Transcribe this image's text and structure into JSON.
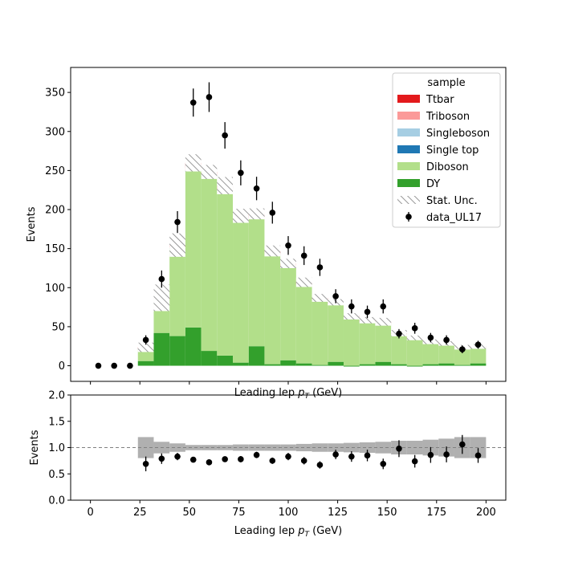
{
  "chart_data": [
    {
      "type": "bar",
      "panel": "main",
      "xlabel_base": "Leading lep ",
      "xlabel_sym": "p",
      "xlabel_sub": "T",
      "xlabel_unit": " (GeV)",
      "ylabel": "Events",
      "xlim": [
        -10,
        210
      ],
      "ylim": [
        -20,
        382
      ],
      "yticks": [
        0,
        50,
        100,
        150,
        200,
        250,
        300,
        350
      ],
      "legend": {
        "title": "sample",
        "placement": "top-right",
        "entries": [
          "Ttbar",
          "Triboson",
          "Singleboson",
          "Single top",
          "Diboson",
          "DY",
          "Stat. Unc.",
          "data_UL17"
        ]
      },
      "bin_edges": [
        0,
        8,
        16,
        24,
        32,
        40,
        48,
        56,
        64,
        72,
        80,
        88,
        96,
        104,
        112,
        120,
        128,
        136,
        144,
        152,
        160,
        168,
        176,
        184,
        192,
        200
      ],
      "series": [
        {
          "name": "DY",
          "color": "#33a02c",
          "values": [
            0,
            0,
            0,
            6,
            42,
            38,
            49,
            19,
            13,
            4,
            25,
            2,
            7,
            3,
            1,
            5,
            -1,
            2,
            5,
            2,
            -1,
            2,
            3,
            1,
            3
          ]
        },
        {
          "name": "Diboson",
          "color": "#b2df8a",
          "values": [
            0,
            0,
            0,
            15,
            42,
            112,
            200,
            224,
            211,
            183,
            163,
            140,
            118,
            100,
            83,
            74,
            62,
            54,
            49,
            38,
            35,
            27,
            24,
            21,
            20
          ]
        },
        {
          "name": "Single top",
          "color": "#1f78b4",
          "values": [
            0,
            0,
            0,
            0.3,
            0.4,
            0.5,
            0.5,
            0.4,
            0.4,
            0.3,
            0.3,
            0.3,
            0.3,
            0.2,
            0.2,
            0.2,
            0.2,
            0.2,
            0.2,
            0.1,
            0.1,
            0.1,
            0.1,
            0.1,
            0.1
          ]
        },
        {
          "name": "Singleboson",
          "color": "#a6cee3",
          "values": [
            0,
            0,
            0,
            0.3,
            0.3,
            0.3,
            0.3,
            0.3,
            0.3,
            0.2,
            0.2,
            0.2,
            0.2,
            0.2,
            0.2,
            0.1,
            0.1,
            0.1,
            0.1,
            0.1,
            0.1,
            0.1,
            0.1,
            0.1,
            0.1
          ]
        },
        {
          "name": "Triboson",
          "color": "#fb9a99",
          "values": [
            0,
            0,
            0,
            0.5,
            0.8,
            1.2,
            4,
            2,
            2,
            2,
            2,
            1.5,
            3,
            1.5,
            1,
            0.5,
            0.5,
            0.5,
            0.5,
            0.5,
            0.5,
            0.5,
            0.5,
            0.5,
            0.5
          ]
        },
        {
          "name": "Ttbar",
          "color": "#e31a1c",
          "values": [
            0,
            0,
            0,
            1.5,
            1.5,
            2.5,
            6,
            2.5,
            4,
            2.5,
            4,
            3,
            2.5,
            2,
            1.5,
            1.5,
            1.5,
            1.5,
            1.5,
            1,
            1,
            1,
            1,
            1,
            1
          ]
        }
      ],
      "stat_unc": [
        0,
        0,
        0,
        6,
        17,
        15,
        11,
        9,
        11,
        9,
        7,
        7,
        6,
        6,
        5,
        4,
        4,
        4,
        5,
        4,
        3,
        3,
        3,
        3,
        3
      ],
      "data": {
        "name": "data_UL17",
        "x": [
          4,
          12,
          20,
          28,
          36,
          44,
          52,
          60,
          68,
          76,
          84,
          92,
          100,
          108,
          116,
          124,
          132,
          140,
          148,
          156,
          164,
          172,
          180,
          188,
          196
        ],
        "y": [
          0,
          0,
          0,
          33,
          111,
          184,
          337,
          344,
          295,
          247,
          227,
          196,
          154,
          141,
          126,
          89,
          76,
          69,
          76,
          41,
          48,
          36,
          33,
          21,
          27
        ],
        "err": [
          0,
          0,
          0,
          6,
          11,
          14,
          18,
          19,
          17,
          16,
          15,
          14,
          12,
          12,
          11,
          9,
          9,
          8,
          9,
          6,
          7,
          6,
          6,
          5,
          5
        ]
      }
    },
    {
      "type": "scatter",
      "panel": "ratio",
      "xlabel_base": "Leading lep ",
      "xlabel_sym": "p",
      "xlabel_sub": "T",
      "xlabel_unit": " (GeV)",
      "ylabel": "Events",
      "xlim": [
        -10,
        210
      ],
      "ylim": [
        0,
        2
      ],
      "xticks": [
        0,
        25,
        50,
        75,
        100,
        125,
        150,
        175,
        200
      ],
      "yticks": [
        0.0,
        0.5,
        1.0,
        1.5,
        2.0
      ],
      "ytick_labels": [
        "0.0",
        "0.5",
        "1.0",
        "1.5",
        "2.0"
      ],
      "reference_line": 1.0,
      "unc_band": [
        0,
        0,
        0,
        0.2,
        0.11,
        0.08,
        0.05,
        0.05,
        0.05,
        0.06,
        0.06,
        0.06,
        0.06,
        0.07,
        0.08,
        0.08,
        0.09,
        0.1,
        0.11,
        0.13,
        0.13,
        0.15,
        0.17,
        0.2,
        0.2
      ],
      "x": [
        28,
        36,
        44,
        52,
        60,
        68,
        76,
        84,
        92,
        100,
        108,
        116,
        124,
        132,
        140,
        148,
        156,
        164,
        172,
        180,
        188,
        196
      ],
      "y": [
        0.69,
        0.79,
        0.83,
        0.77,
        0.72,
        0.78,
        0.78,
        0.86,
        0.75,
        0.83,
        0.75,
        0.67,
        0.87,
        0.83,
        0.85,
        0.69,
        0.98,
        0.74,
        0.86,
        0.87,
        1.06,
        0.85
      ],
      "err": [
        0.14,
        0.1,
        0.07,
        0.05,
        0.05,
        0.05,
        0.06,
        0.06,
        0.06,
        0.07,
        0.07,
        0.07,
        0.09,
        0.1,
        0.11,
        0.1,
        0.16,
        0.12,
        0.15,
        0.15,
        0.18,
        0.14
      ]
    }
  ]
}
